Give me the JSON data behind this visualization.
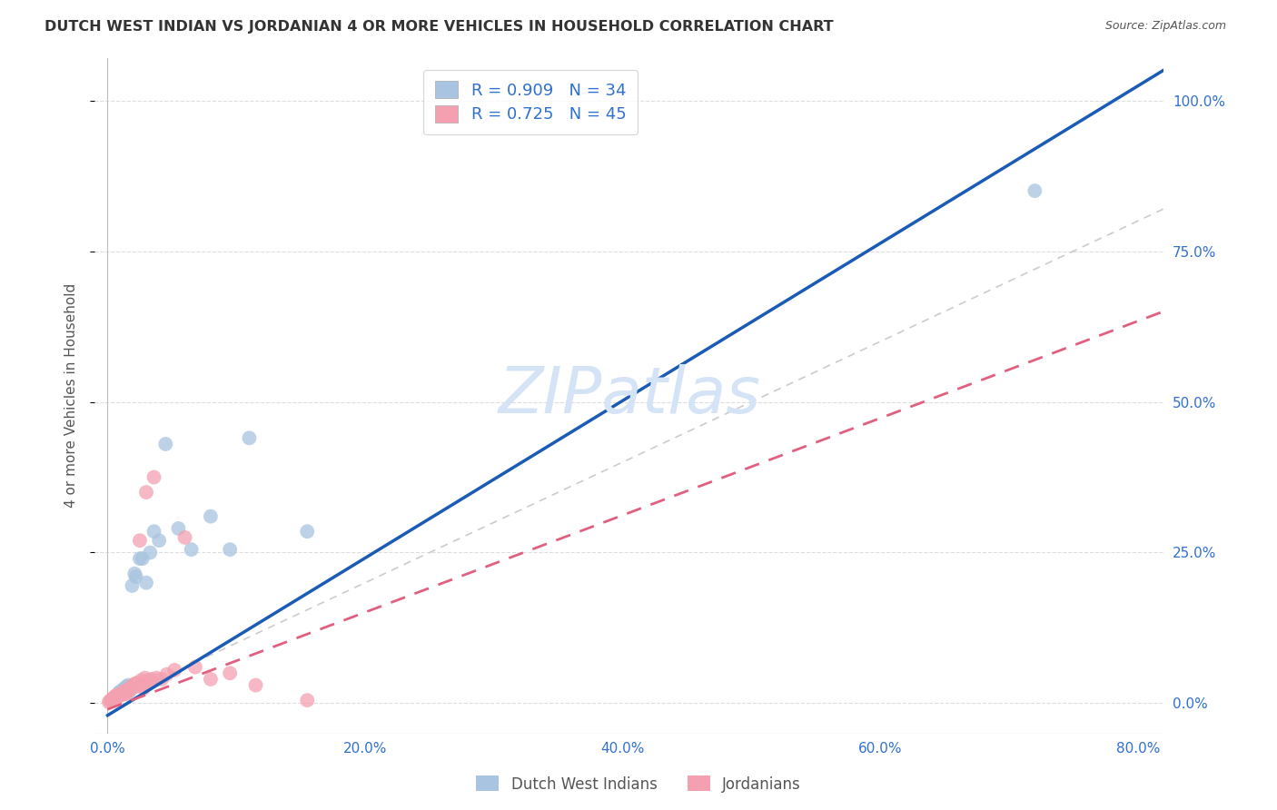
{
  "title": "DUTCH WEST INDIAN VS JORDANIAN 4 OR MORE VEHICLES IN HOUSEHOLD CORRELATION CHART",
  "source": "Source: ZipAtlas.com",
  "xlabel_ticks": [
    "0.0%",
    "",
    "",
    "",
    "20.0%",
    "",
    "",
    "",
    "40.0%",
    "",
    "",
    "",
    "60.0%",
    "",
    "",
    "",
    "80.0%"
  ],
  "xlabel_tick_vals": [
    0.0,
    0.05,
    0.1,
    0.15,
    0.2,
    0.25,
    0.3,
    0.35,
    0.4,
    0.45,
    0.5,
    0.55,
    0.6,
    0.65,
    0.7,
    0.75,
    0.8
  ],
  "xlabel_major_ticks": [
    0.0,
    0.2,
    0.4,
    0.6,
    0.8
  ],
  "xlabel_major_labels": [
    "0.0%",
    "20.0%",
    "40.0%",
    "60.0%",
    "80.0%"
  ],
  "ylabel": "4 or more Vehicles in Household",
  "ylabel_ticks": [
    "0.0%",
    "25.0%",
    "50.0%",
    "75.0%",
    "100.0%"
  ],
  "ylabel_tick_vals": [
    0.0,
    0.25,
    0.5,
    0.75,
    1.0
  ],
  "xlim": [
    -0.01,
    0.82
  ],
  "ylim": [
    -0.05,
    1.07
  ],
  "dutch_R": 0.909,
  "dutch_N": 34,
  "jordan_R": 0.725,
  "jordan_N": 45,
  "dutch_color": "#a8c4e0",
  "jordan_color": "#f4a0b0",
  "dutch_line_color": "#1a5cb5",
  "jordan_line_color": "#e06080",
  "reference_line_color": "#cccccc",
  "background_color": "#ffffff",
  "watermark_color": "#d4e3f5",
  "legend_color": "#3070d0",
  "dutch_x": [
    0.003,
    0.005,
    0.006,
    0.007,
    0.008,
    0.009,
    0.01,
    0.011,
    0.012,
    0.013,
    0.014,
    0.015,
    0.016,
    0.017,
    0.018,
    0.019,
    0.02,
    0.021,
    0.022,
    0.023,
    0.025,
    0.027,
    0.03,
    0.033,
    0.036,
    0.04,
    0.045,
    0.055,
    0.065,
    0.08,
    0.095,
    0.11,
    0.155,
    0.72
  ],
  "dutch_y": [
    0.005,
    0.008,
    0.01,
    0.012,
    0.015,
    0.018,
    0.02,
    0.018,
    0.022,
    0.025,
    0.02,
    0.028,
    0.03,
    0.025,
    0.022,
    0.195,
    0.03,
    0.215,
    0.21,
    0.03,
    0.24,
    0.24,
    0.2,
    0.25,
    0.285,
    0.27,
    0.43,
    0.29,
    0.255,
    0.31,
    0.255,
    0.44,
    0.285,
    0.85
  ],
  "jordan_x": [
    0.001,
    0.002,
    0.003,
    0.004,
    0.005,
    0.006,
    0.006,
    0.007,
    0.008,
    0.009,
    0.01,
    0.011,
    0.012,
    0.012,
    0.013,
    0.014,
    0.015,
    0.016,
    0.017,
    0.018,
    0.019,
    0.02,
    0.021,
    0.022,
    0.023,
    0.024,
    0.025,
    0.026,
    0.027,
    0.028,
    0.029,
    0.03,
    0.032,
    0.034,
    0.036,
    0.038,
    0.042,
    0.046,
    0.052,
    0.06,
    0.068,
    0.08,
    0.095,
    0.115,
    0.155
  ],
  "jordan_y": [
    0.002,
    0.004,
    0.006,
    0.008,
    0.01,
    0.008,
    0.012,
    0.01,
    0.014,
    0.012,
    0.016,
    0.014,
    0.018,
    0.016,
    0.02,
    0.015,
    0.022,
    0.018,
    0.024,
    0.025,
    0.028,
    0.03,
    0.032,
    0.028,
    0.034,
    0.03,
    0.27,
    0.038,
    0.032,
    0.025,
    0.042,
    0.35,
    0.038,
    0.04,
    0.375,
    0.042,
    0.04,
    0.048,
    0.055,
    0.275,
    0.06,
    0.04,
    0.05,
    0.03,
    0.005
  ],
  "dutch_line_x0": 0.0,
  "dutch_line_y0": -0.02,
  "dutch_line_x1": 0.82,
  "dutch_line_y1": 1.05,
  "jordan_line_x0": 0.0,
  "jordan_line_y0": -0.01,
  "jordan_line_x1": 0.82,
  "jordan_line_y1": 0.65
}
